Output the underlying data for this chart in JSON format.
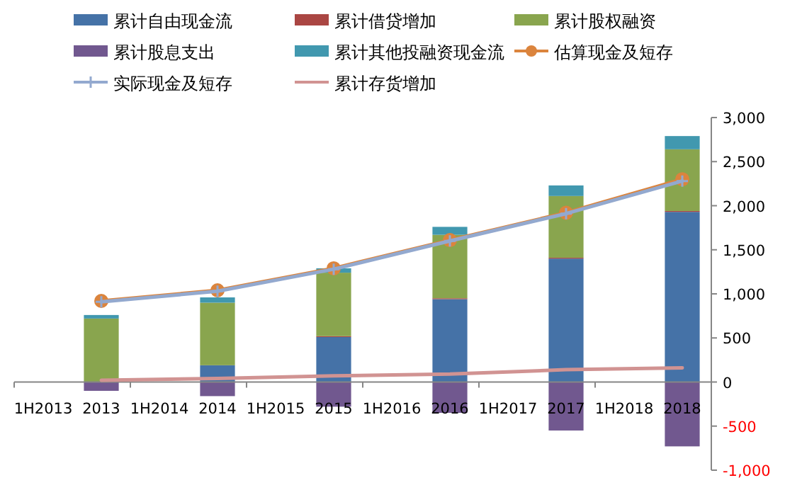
{
  "chart_data": {
    "type": "bar",
    "stacked": true,
    "legend": "top",
    "categories": [
      "1H2013",
      "2013",
      "1H2014",
      "2014",
      "1H2015",
      "2015",
      "1H2016",
      "2016",
      "1H2017",
      "2017",
      "1H2018",
      "2018"
    ],
    "ylim": [
      -1000,
      3000
    ],
    "yticks": [
      {
        "value": -1000,
        "label": "-1,000"
      },
      {
        "value": -500,
        "label": "-500"
      },
      {
        "value": 0,
        "label": "0"
      },
      {
        "value": 500,
        "label": "500"
      },
      {
        "value": 1000,
        "label": "1,000"
      },
      {
        "value": 1500,
        "label": "1,500"
      },
      {
        "value": 2000,
        "label": "2,000"
      },
      {
        "value": 2500,
        "label": "2,500"
      },
      {
        "value": 3000,
        "label": "3,000"
      }
    ],
    "series": [
      {
        "name": "累计自由现金流",
        "color": "#4572a7",
        "values": [
          null,
          null,
          null,
          190,
          null,
          510,
          null,
          940,
          null,
          1400,
          null,
          1930
        ]
      },
      {
        "name": "累计借贷增加",
        "color": "#aa4643",
        "values": [
          null,
          null,
          null,
          null,
          null,
          10,
          null,
          10,
          null,
          10,
          null,
          10
        ]
      },
      {
        "name": "累计股权融资",
        "color": "#89a54e",
        "values": [
          null,
          720,
          null,
          710,
          null,
          720,
          null,
          720,
          null,
          700,
          null,
          700
        ]
      },
      {
        "name": "累计股息支出",
        "color": "#71588f",
        "values": [
          null,
          -100,
          null,
          -160,
          null,
          -280,
          null,
          -350,
          null,
          -550,
          null,
          -730
        ]
      },
      {
        "name": "累计其他投融资现金流",
        "color": "#4198af",
        "values": [
          null,
          40,
          null,
          60,
          null,
          50,
          null,
          90,
          null,
          120,
          null,
          150
        ]
      },
      {
        "name": "估算现金及短存",
        "type": "line",
        "marker": "circle",
        "color": "#db843d",
        "values": [
          null,
          920,
          null,
          1040,
          null,
          1290,
          null,
          1610,
          null,
          1920,
          null,
          2300
        ]
      },
      {
        "name": "实际现金及短存",
        "type": "line",
        "marker": "cross",
        "color": "#93a9cf",
        "values": [
          null,
          910,
          null,
          1030,
          null,
          1280,
          null,
          1600,
          null,
          1910,
          null,
          2280
        ]
      },
      {
        "name": "累计存货增加",
        "type": "line",
        "marker": "none",
        "color": "#d19392",
        "values": [
          null,
          20,
          null,
          40,
          null,
          70,
          null,
          90,
          null,
          140,
          null,
          160
        ]
      }
    ]
  }
}
